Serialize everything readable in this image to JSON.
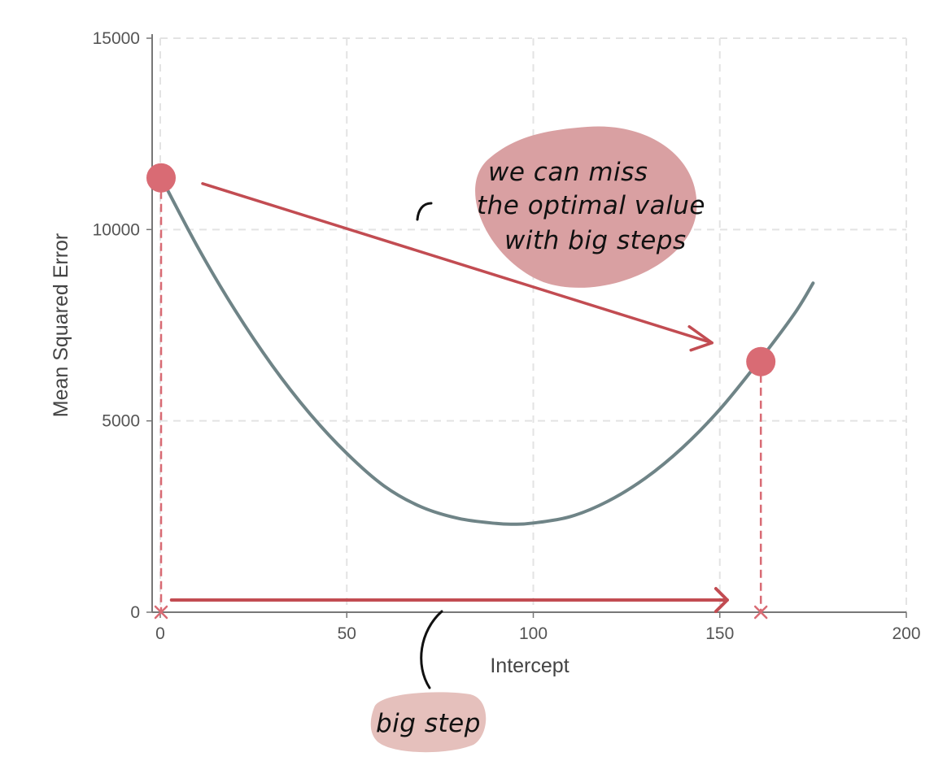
{
  "chart_data": {
    "type": "line",
    "xlabel": "Intercept",
    "ylabel": "Mean Squared Error",
    "xlim": [
      0,
      200
    ],
    "ylim": [
      0,
      15000
    ],
    "x_ticks": [
      "0",
      "50",
      "100",
      "150",
      "200"
    ],
    "y_ticks": [
      "0",
      "5000",
      "10000",
      "15000"
    ],
    "grid": true,
    "series": [
      {
        "color": "#6f8487",
        "x": [
          0,
          10,
          20,
          30,
          40,
          50,
          60,
          70,
          80,
          90,
          95,
          100,
          110,
          120,
          130,
          140,
          150,
          160,
          170,
          175
        ],
        "y": [
          11400,
          9550,
          7900,
          6450,
          5200,
          4150,
          3300,
          2750,
          2450,
          2320,
          2300,
          2330,
          2500,
          2900,
          3500,
          4300,
          5300,
          6500,
          7800,
          8600
        ]
      }
    ],
    "step_points": [
      {
        "x": 0,
        "y": 11350
      },
      {
        "x": 161,
        "y": 6550
      }
    ],
    "step_arrow_x": [
      3,
      152
    ],
    "annotations": [
      {
        "lines": [
          "we can miss",
          "the optimal value",
          "with big steps"
        ]
      },
      {
        "lines": [
          "big step"
        ]
      }
    ],
    "colors": {
      "curve": "#6f8487",
      "marker": "#d96b74",
      "arrow": "#c24c52",
      "bubble_large": "#d9a0a2",
      "bubble_small": "#e5c0bc",
      "grid": "#e3e3e3",
      "axis": "#777777"
    }
  }
}
